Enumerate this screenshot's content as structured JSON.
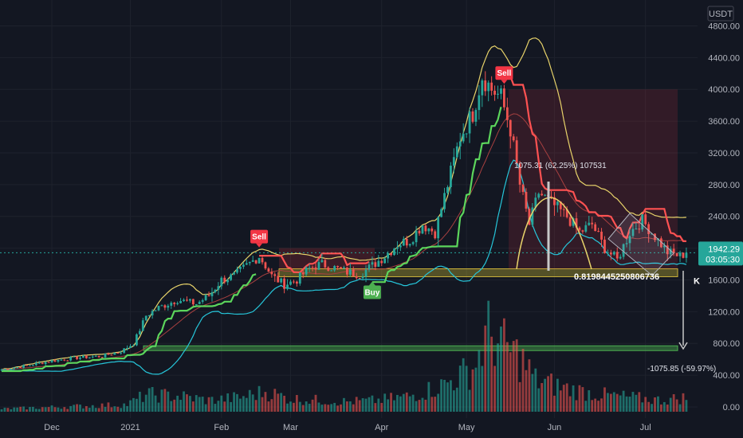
{
  "currency": "USDT",
  "current_price": "1942.29",
  "countdown": "03:05:30",
  "fib_ratio": "0.8198445250806736",
  "measure_top": "1075.31 (62.25%) 107531",
  "measure_bottom": "-1075.85 (-59.97%)",
  "k_label": "K",
  "signals": [
    {
      "label": "Sell",
      "color": "#f23645",
      "t": 82,
      "price": 1990
    },
    {
      "label": "Buy",
      "color": "#4caf50",
      "t": 118,
      "price": 1590
    },
    {
      "label": "Sell",
      "color": "#f23645",
      "t": 160,
      "price": 4050
    }
  ],
  "chart_data": {
    "type": "candlestick",
    "ylim": [
      0,
      4800
    ],
    "y_ticks": [
      "0.00",
      "400.00",
      "800.00",
      "1200.00",
      "1600.00",
      "2000.00",
      "2400.00",
      "2800.00",
      "3200.00",
      "3600.00",
      "4000.00",
      "4400.00",
      "4800.00"
    ],
    "x_labels": [
      {
        "label": "Dec",
        "t": 16
      },
      {
        "label": "2021",
        "t": 41
      },
      {
        "label": "Feb",
        "t": 70
      },
      {
        "label": "Mar",
        "t": 92
      },
      {
        "label": "Apr",
        "t": 121
      },
      {
        "label": "May",
        "t": 148
      },
      {
        "label": "Jun",
        "t": 176
      },
      {
        "label": "Jul",
        "t": 205
      }
    ],
    "close_keypoints": [
      [
        0,
        470
      ],
      [
        8,
        520
      ],
      [
        16,
        580
      ],
      [
        24,
        620
      ],
      [
        32,
        640
      ],
      [
        38,
        700
      ],
      [
        42,
        800
      ],
      [
        46,
        1150
      ],
      [
        50,
        1250
      ],
      [
        56,
        1350
      ],
      [
        62,
        1300
      ],
      [
        66,
        1400
      ],
      [
        70,
        1600
      ],
      [
        74,
        1650
      ],
      [
        78,
        1780
      ],
      [
        82,
        1900
      ],
      [
        84,
        1780
      ],
      [
        86,
        1650
      ],
      [
        90,
        1540
      ],
      [
        94,
        1600
      ],
      [
        98,
        1750
      ],
      [
        102,
        1800
      ],
      [
        106,
        1750
      ],
      [
        110,
        1700
      ],
      [
        114,
        1670
      ],
      [
        118,
        1780
      ],
      [
        122,
        1900
      ],
      [
        126,
        2050
      ],
      [
        130,
        2100
      ],
      [
        134,
        2300
      ],
      [
        138,
        2200
      ],
      [
        142,
        2800
      ],
      [
        146,
        3400
      ],
      [
        150,
        3700
      ],
      [
        153,
        4170
      ],
      [
        156,
        4000
      ],
      [
        159,
        3900
      ],
      [
        162,
        3500
      ],
      [
        165,
        2800
      ],
      [
        168,
        2300
      ],
      [
        171,
        2700
      ],
      [
        174,
        2600
      ],
      [
        177,
        2500
      ],
      [
        180,
        2400
      ],
      [
        184,
        2200
      ],
      [
        188,
        2300
      ],
      [
        192,
        2000
      ],
      [
        196,
        1850
      ],
      [
        200,
        2200
      ],
      [
        204,
        2350
      ],
      [
        208,
        2150
      ],
      [
        212,
        1950
      ],
      [
        216,
        1900
      ],
      [
        218,
        1942
      ]
    ],
    "volume_keypoints": [
      [
        0,
        20
      ],
      [
        20,
        35
      ],
      [
        40,
        50
      ],
      [
        46,
        120
      ],
      [
        56,
        110
      ],
      [
        66,
        80
      ],
      [
        76,
        100
      ],
      [
        84,
        140
      ],
      [
        92,
        90
      ],
      [
        110,
        70
      ],
      [
        120,
        80
      ],
      [
        130,
        110
      ],
      [
        140,
        180
      ],
      [
        150,
        300
      ],
      [
        155,
        550
      ],
      [
        160,
        450
      ],
      [
        165,
        380
      ],
      [
        170,
        220
      ],
      [
        180,
        160
      ],
      [
        190,
        120
      ],
      [
        200,
        100
      ],
      [
        210,
        80
      ],
      [
        218,
        100
      ]
    ],
    "support_zone": [
      1640,
      1740
    ],
    "lower_level": 740
  }
}
